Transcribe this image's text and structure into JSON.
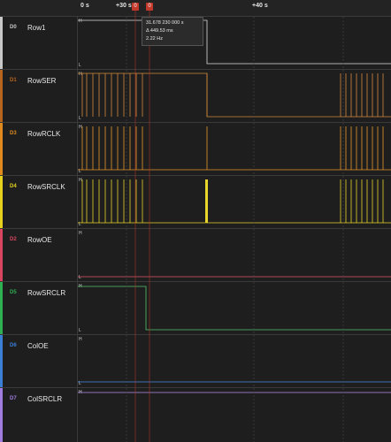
{
  "ruler": {
    "labels": [
      "0 s",
      "+30 s",
      "+40 s"
    ],
    "cursor_tags": [
      "0",
      "0"
    ]
  },
  "tooltip": {
    "time": "31.678 230 000 s",
    "delta": "Δ 449.53 ms",
    "freq": "2.22 Hz"
  },
  "level_labels": {
    "high": "H",
    "low": "L"
  },
  "channels": [
    {
      "id": "D0",
      "name": "Row1",
      "color": "#c8c8c8",
      "wave": "#dddddd"
    },
    {
      "id": "D1",
      "name": "RowSER",
      "color": "#b5651d",
      "wave": "#d4893c"
    },
    {
      "id": "D3",
      "name": "RowRCLK",
      "color": "#e08a1e",
      "wave": "#e8962a"
    },
    {
      "id": "D4",
      "name": "RowSRCLK",
      "color": "#e6d21c",
      "wave": "#e8d52a"
    },
    {
      "id": "D2",
      "name": "RowOE",
      "color": "#d9455f",
      "wave": "#e35a6e"
    },
    {
      "id": "D5",
      "name": "RowSRCLR",
      "color": "#2fae52",
      "wave": "#53c46c"
    },
    {
      "id": "D6",
      "name": "ColOE",
      "color": "#3a7fd6",
      "wave": "#4d8fe4"
    },
    {
      "id": "D7",
      "name": "ColSRCLR",
      "color": "#a07be0",
      "wave": "#b291ec"
    }
  ]
}
